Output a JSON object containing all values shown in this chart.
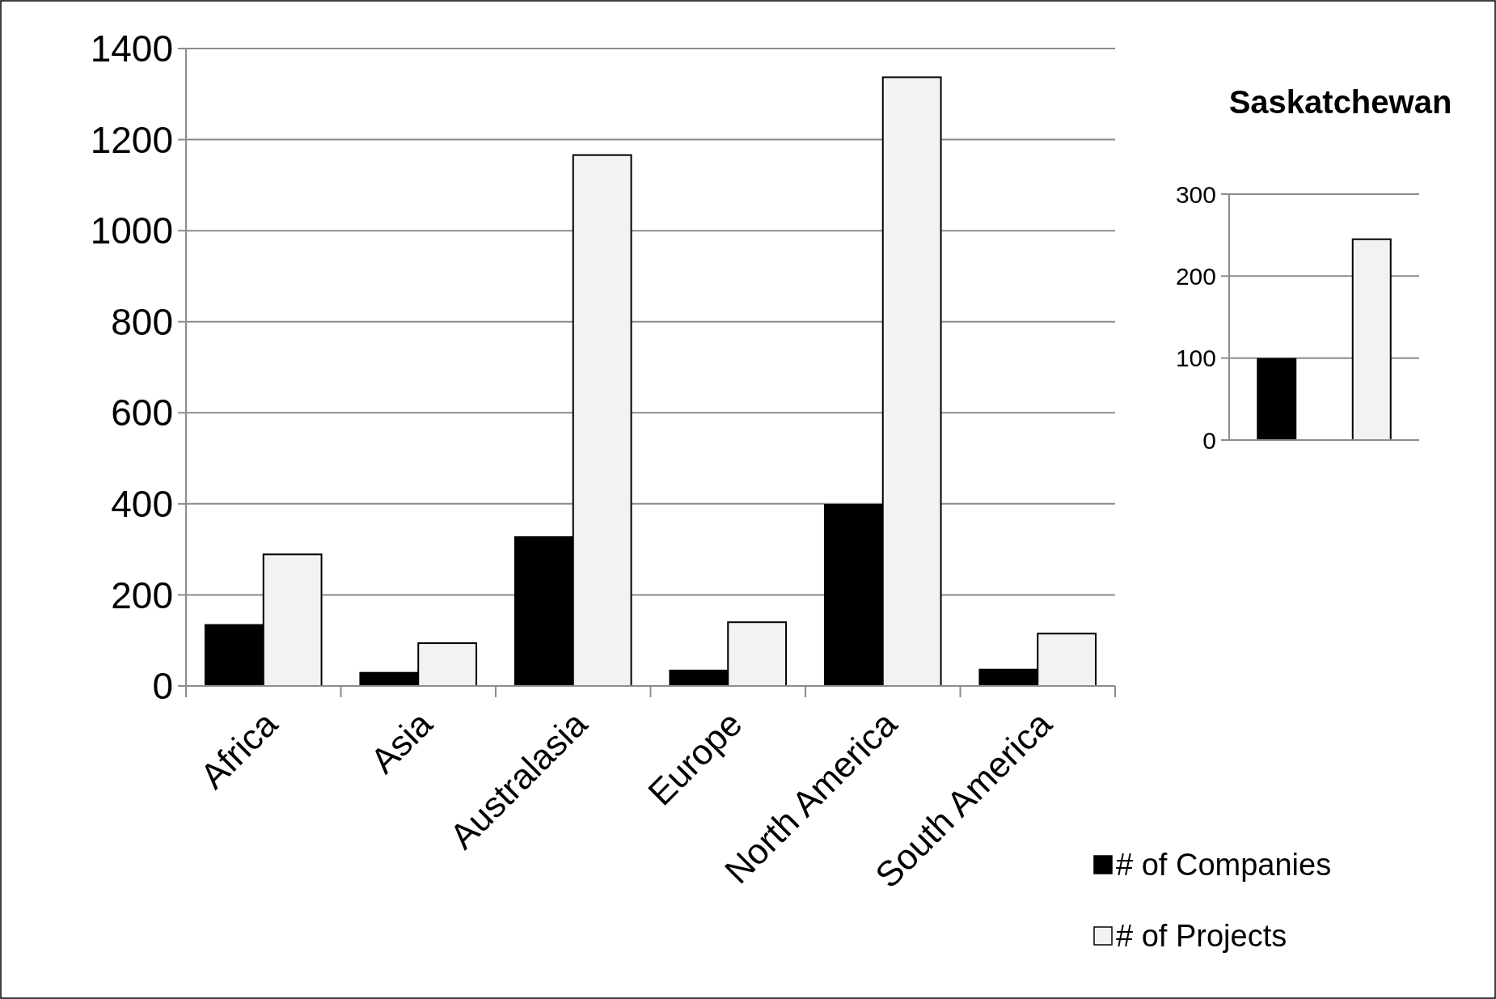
{
  "chart_data": [
    {
      "type": "bar",
      "categories": [
        "Africa",
        "Asia",
        "Australasia",
        "Europe",
        "North America",
        "South America"
      ],
      "series": [
        {
          "name": "# of Companies",
          "color": "#000000",
          "values": [
            134,
            29,
            327,
            34,
            398,
            36
          ]
        },
        {
          "name": "# of Projects",
          "color": "#f2f2f2",
          "values": [
            289,
            94,
            1166,
            140,
            1337,
            115
          ]
        }
      ],
      "ylim": [
        0,
        1400
      ],
      "yticks": [
        0,
        200,
        400,
        600,
        800,
        1000,
        1200,
        1400
      ],
      "grid": "y",
      "legend": "bottom right"
    },
    {
      "type": "bar",
      "title": "Saskatchewan",
      "categories": [
        null,
        null
      ],
      "values": [
        99,
        245
      ],
      "colors": [
        "#000000",
        "#f2f2f2"
      ],
      "ylim": [
        0,
        300
      ],
      "yticks": [
        0,
        100,
        200,
        300
      ],
      "grid": "y",
      "tick_labels": "y"
    }
  ]
}
